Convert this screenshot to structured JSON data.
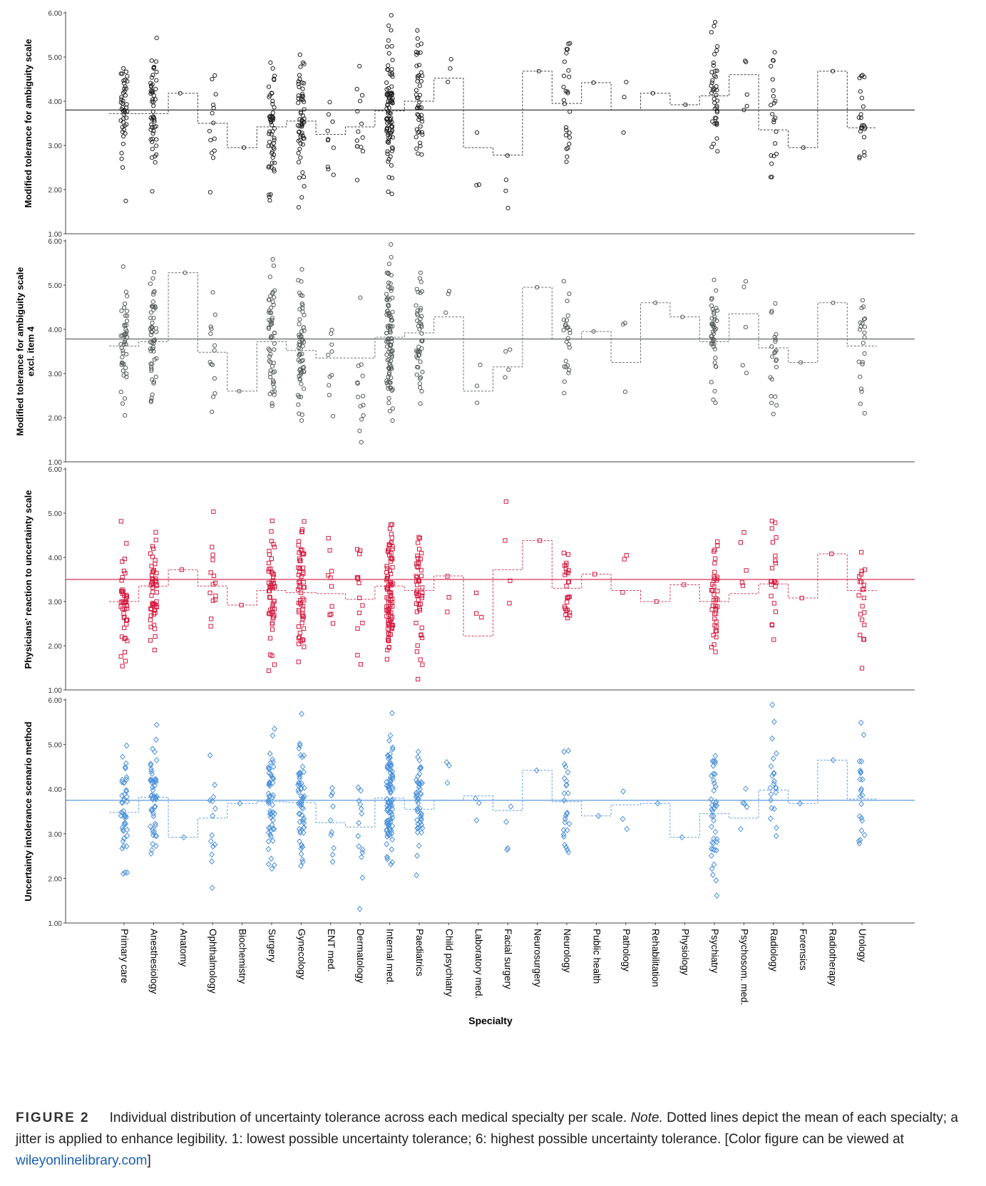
{
  "chart_data": {
    "type": "scatter",
    "title": "",
    "xlabel": "Specialty",
    "categories": [
      "Primary care",
      "Anesthesiology",
      "Anatomy",
      "Ophthalmology",
      "Biochemistry",
      "Surgery",
      "Gynecology",
      "ENT med.",
      "Dermatology",
      "Internal med.",
      "Paediatrics",
      "Child psychiatry",
      "Laboratory med.",
      "Facial surgery",
      "Neurosurgery",
      "Neurology",
      "Public health",
      "Pathology",
      "Rehabilitation",
      "Physiology",
      "Psychiatry",
      "Psychosom. med.",
      "Radiology",
      "Forensics",
      "Radiotherapy",
      "Urology"
    ],
    "ylim": [
      1,
      6
    ],
    "yticks": [
      "1.00",
      "2.00",
      "3.00",
      "4.00",
      "5.00",
      "6.00"
    ],
    "grid": false,
    "panels": [
      {
        "ylabel": [
          "Modified tolerance for ambiguity scale"
        ],
        "marker": "circle",
        "color": "#222222",
        "grand_mean": 3.8,
        "category_means": [
          3.72,
          3.72,
          4.18,
          3.5,
          2.95,
          3.42,
          3.55,
          3.25,
          3.42,
          3.78,
          4.0,
          4.52,
          2.95,
          2.78,
          4.68,
          3.95,
          4.42,
          3.8,
          4.18,
          3.92,
          4.12,
          4.6,
          3.35,
          2.95,
          4.68,
          3.4
        ]
      },
      {
        "ylabel": [
          "Modified tolerance for ambiguity scale",
          "excl. item 4"
        ],
        "marker": "circle",
        "color": "#555a5a",
        "grand_mean": 3.78,
        "category_means": [
          3.62,
          3.72,
          5.28,
          3.48,
          2.6,
          3.72,
          3.52,
          3.35,
          3.35,
          3.82,
          3.92,
          4.28,
          2.6,
          3.15,
          4.95,
          3.78,
          3.95,
          3.25,
          4.6,
          4.28,
          3.72,
          4.35,
          3.58,
          3.25,
          4.6,
          3.62
        ]
      },
      {
        "ylabel": [
          "Physicians' reaction to uncertainty scale"
        ],
        "marker": "square",
        "color": "#d41a3f",
        "grand_mean": 3.5,
        "category_means": [
          3.0,
          3.35,
          3.72,
          3.35,
          2.92,
          3.25,
          3.2,
          3.18,
          3.05,
          3.35,
          3.25,
          3.58,
          2.22,
          3.72,
          4.38,
          3.3,
          3.62,
          3.25,
          3.0,
          3.38,
          3.0,
          3.18,
          3.4,
          3.08,
          4.08,
          3.25
        ]
      },
      {
        "ylabel": [
          "Uncertainty intolerance scenario method"
        ],
        "marker": "diamond",
        "color": "#4a90d9",
        "grand_mean": 3.75,
        "category_means": [
          3.48,
          3.82,
          2.92,
          3.35,
          3.68,
          3.72,
          3.7,
          3.25,
          3.15,
          3.8,
          3.55,
          3.75,
          3.85,
          3.52,
          4.42,
          3.72,
          3.4,
          3.65,
          3.68,
          2.92,
          3.45,
          3.35,
          3.98,
          3.68,
          4.65,
          3.78
        ]
      }
    ]
  },
  "caption": {
    "label": "FIGURE 2",
    "text_before_note": "Individual distribution of uncertainty tolerance across each medical specialty per scale.",
    "note": "Note.",
    "text_after_note": "Dotted lines depict the mean of each specialty; a jitter is applied to enhance legibility. 1: lowest possible uncertainty tolerance; 6: highest possible uncertainty tolerance. [Color figure can be viewed at",
    "link": "wileyonlinelibrary.com",
    "closing": "]"
  }
}
